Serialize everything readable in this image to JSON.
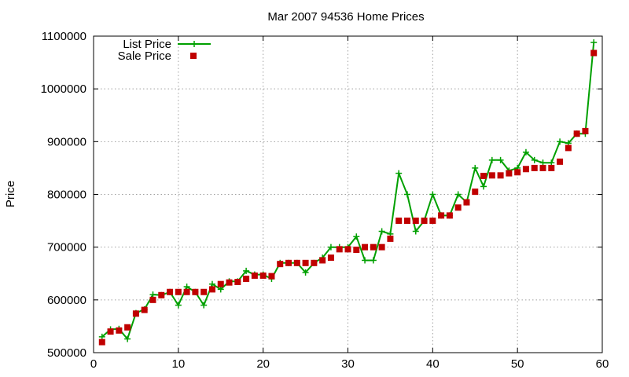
{
  "chart_data": {
    "type": "line",
    "title": "Mar 2007 94536 Home Prices",
    "xlabel": "",
    "ylabel": "Price",
    "xlim": [
      0,
      60
    ],
    "ylim": [
      500000,
      1100000
    ],
    "xticks": [
      0,
      10,
      20,
      30,
      40,
      50,
      60
    ],
    "yticks": [
      500000,
      600000,
      700000,
      800000,
      900000,
      1000000,
      1100000
    ],
    "xtick_labels": [
      "0",
      "10",
      "20",
      "30",
      "40",
      "50",
      "60"
    ],
    "ytick_labels": [
      "500000",
      "600000",
      "700000",
      "800000",
      "900000",
      "1000000",
      "1100000"
    ],
    "grid": true,
    "legend_position": "top-left",
    "x": [
      1,
      2,
      3,
      4,
      5,
      6,
      7,
      8,
      9,
      10,
      11,
      12,
      13,
      14,
      15,
      16,
      17,
      18,
      19,
      20,
      21,
      22,
      23,
      24,
      25,
      26,
      27,
      28,
      29,
      30,
      31,
      32,
      33,
      34,
      35,
      36,
      37,
      38,
      39,
      40,
      41,
      42,
      43,
      44,
      45,
      46,
      47,
      48,
      49,
      50,
      51,
      52,
      53,
      54,
      55,
      56,
      57,
      58,
      59
    ],
    "series": [
      {
        "name": "List Price",
        "style": "lines+crosses",
        "color": "#00a000",
        "values": [
          530000,
          544000,
          545000,
          526000,
          575000,
          582000,
          610000,
          609000,
          615000,
          590000,
          625000,
          615000,
          590000,
          630000,
          620000,
          635000,
          635000,
          655000,
          648000,
          648000,
          640000,
          670000,
          670000,
          670000,
          652000,
          670000,
          680000,
          700000,
          700000,
          700000,
          720000,
          675000,
          675000,
          730000,
          725000,
          840000,
          800000,
          730000,
          750000,
          800000,
          760000,
          760000,
          800000,
          785000,
          850000,
          815000,
          865000,
          865000,
          845000,
          850000,
          880000,
          865000,
          860000,
          860000,
          900000,
          897000,
          915000,
          915000,
          1088000
        ]
      },
      {
        "name": "Sale Price",
        "style": "squares",
        "color": "#c00000",
        "values": [
          520000,
          540000,
          542000,
          548000,
          574000,
          581000,
          600000,
          609000,
          615000,
          615000,
          615000,
          615000,
          615000,
          620000,
          630000,
          633000,
          634000,
          640000,
          646000,
          646000,
          645000,
          668000,
          670000,
          670000,
          670000,
          670000,
          675000,
          680000,
          696000,
          696000,
          695000,
          700000,
          700000,
          700000,
          716000,
          750000,
          750000,
          750000,
          750000,
          750000,
          760000,
          760000,
          775000,
          785000,
          805000,
          835000,
          836000,
          836000,
          840000,
          842000,
          848000,
          850000,
          850000,
          850000,
          862000,
          888000,
          915000,
          920000,
          1068000
        ]
      }
    ]
  }
}
